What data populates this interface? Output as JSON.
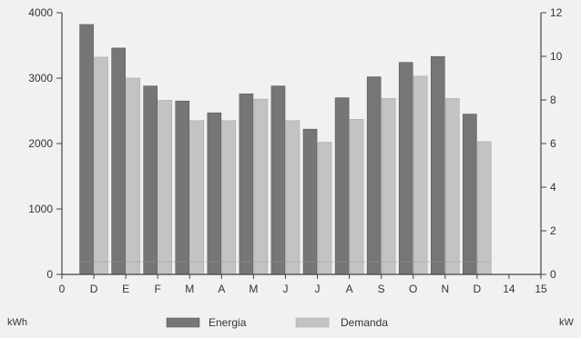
{
  "chart_data": {
    "type": "bar",
    "categories": [
      "D",
      "E",
      "F",
      "M",
      "A",
      "M",
      "J",
      "J",
      "A",
      "S",
      "O",
      "N",
      "D"
    ],
    "x_ticks": [
      "0",
      "D",
      "E",
      "F",
      "M",
      "A",
      "M",
      "J",
      "J",
      "A",
      "S",
      "O",
      "N",
      "D",
      "14",
      "15"
    ],
    "series": [
      {
        "name": "Energia",
        "values": [
          3820,
          3460,
          2880,
          2650,
          2470,
          2760,
          2880,
          2220,
          2700,
          3020,
          3240,
          3330,
          2450
        ],
        "color": "#767676"
      },
      {
        "name": "Demanda",
        "values": [
          3320,
          3000,
          2660,
          2350,
          2350,
          2680,
          2350,
          2020,
          2370,
          2690,
          3030,
          2690,
          2030
        ],
        "color": "#c3c3c3"
      }
    ],
    "y_left": {
      "unit": "kWh",
      "ylim": [
        0,
        4000
      ],
      "ticks": [
        "0",
        "1000",
        "2000",
        "3000",
        "4000"
      ]
    },
    "y_right": {
      "unit": "kW",
      "ylim": [
        0,
        12
      ],
      "ticks": [
        "0",
        "2",
        "4",
        "6",
        "8",
        "10",
        "12"
      ]
    },
    "legend_position": "bottom",
    "grid": false
  }
}
